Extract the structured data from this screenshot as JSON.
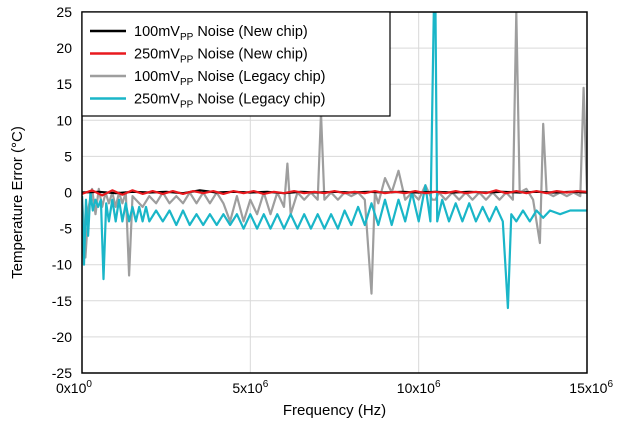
{
  "chart_data": {
    "type": "line",
    "xlabel": "Frequency (Hz)",
    "ylabel": "Temperature Error (°C)",
    "xlim": [
      0,
      15000000
    ],
    "ylim": [
      -25,
      25
    ],
    "grid": true,
    "legend_position": "top-left",
    "x_ticks": [
      {
        "value": 0,
        "mantissa": "0x10",
        "exp": "0"
      },
      {
        "value": 5000000,
        "mantissa": "5x10",
        "exp": "6"
      },
      {
        "value": 10000000,
        "mantissa": "10x10",
        "exp": "6"
      },
      {
        "value": 15000000,
        "mantissa": "15x10",
        "exp": "6"
      }
    ],
    "y_ticks": [
      "25",
      "20",
      "15",
      "10",
      "5",
      "0",
      "-5",
      "-10",
      "-15",
      "-20",
      "-25"
    ],
    "series": [
      {
        "name_base": "100mV",
        "name_sub": "PP",
        "name_rest": " Noise (New chip)",
        "color": "#000000",
        "points": [
          [
            0,
            0
          ],
          [
            500000,
            0.1
          ],
          [
            1000000,
            -0.1
          ],
          [
            1500000,
            0.1
          ],
          [
            2000000,
            0
          ],
          [
            2500000,
            0.1
          ],
          [
            3000000,
            -0.1
          ],
          [
            3500000,
            0.3
          ],
          [
            4000000,
            0
          ],
          [
            4500000,
            0.1
          ],
          [
            5000000,
            0
          ],
          [
            5500000,
            0.1
          ],
          [
            6000000,
            -0.1
          ],
          [
            6500000,
            0.1
          ],
          [
            7000000,
            0
          ],
          [
            7500000,
            0.1
          ],
          [
            8000000,
            0
          ],
          [
            8500000,
            0.1
          ],
          [
            9000000,
            0
          ],
          [
            9500000,
            0.1
          ],
          [
            10000000,
            0
          ],
          [
            10500000,
            0.1
          ],
          [
            11000000,
            0
          ],
          [
            11500000,
            0.1
          ],
          [
            12000000,
            0
          ],
          [
            12500000,
            0.1
          ],
          [
            13000000,
            0
          ],
          [
            13500000,
            0.1
          ],
          [
            14000000,
            0
          ],
          [
            14500000,
            0.1
          ],
          [
            15000000,
            0
          ]
        ]
      },
      {
        "name_base": "250mV",
        "name_sub": "PP",
        "name_rest": " Noise (New chip)",
        "color": "#e8191e",
        "points": [
          [
            0,
            -0.2
          ],
          [
            300000,
            0.3
          ],
          [
            600000,
            -0.4
          ],
          [
            900000,
            0.3
          ],
          [
            1200000,
            -0.3
          ],
          [
            1500000,
            0.3
          ],
          [
            1800000,
            -0.2
          ],
          [
            2100000,
            0.2
          ],
          [
            2400000,
            -0.2
          ],
          [
            2700000,
            0.2
          ],
          [
            3000000,
            -0.2
          ],
          [
            3300000,
            0.2
          ],
          [
            3600000,
            -0.1
          ],
          [
            3900000,
            0.2
          ],
          [
            4200000,
            -0.2
          ],
          [
            4500000,
            0.2
          ],
          [
            4800000,
            -0.1
          ],
          [
            5100000,
            0.2
          ],
          [
            5400000,
            -0.2
          ],
          [
            5700000,
            0.1
          ],
          [
            6000000,
            -0.1
          ],
          [
            6300000,
            0.2
          ],
          [
            6600000,
            -0.1
          ],
          [
            6900000,
            0.1
          ],
          [
            7200000,
            -0.1
          ],
          [
            7500000,
            0.2
          ],
          [
            7800000,
            -0.1
          ],
          [
            8100000,
            0.1
          ],
          [
            8400000,
            -0.1
          ],
          [
            8700000,
            0.2
          ],
          [
            9000000,
            -0.1
          ],
          [
            9300000,
            0.1
          ],
          [
            9600000,
            -0.1
          ],
          [
            9900000,
            0.2
          ],
          [
            10200000,
            -0.1
          ],
          [
            10500000,
            0.1
          ],
          [
            10800000,
            -0.1
          ],
          [
            11100000,
            0.2
          ],
          [
            11400000,
            -0.1
          ],
          [
            11700000,
            0.1
          ],
          [
            12000000,
            -0.1
          ],
          [
            12300000,
            0.3
          ],
          [
            12600000,
            -0.1
          ],
          [
            12900000,
            0.2
          ],
          [
            13200000,
            -0.1
          ],
          [
            13500000,
            0.2
          ],
          [
            13800000,
            -0.1
          ],
          [
            14100000,
            0.2
          ],
          [
            14400000,
            0
          ],
          [
            14700000,
            0.2
          ],
          [
            15000000,
            0.1
          ]
        ]
      },
      {
        "name_base": "100mV",
        "name_sub": "PP",
        "name_rest": " Noise (Legacy chip)",
        "color": "#9e9e9e",
        "points": [
          [
            0,
            -0.5
          ],
          [
            100000,
            -9
          ],
          [
            200000,
            -2
          ],
          [
            300000,
            0.5
          ],
          [
            400000,
            -3
          ],
          [
            500000,
            0.5
          ],
          [
            600000,
            -2
          ],
          [
            700000,
            0
          ],
          [
            800000,
            -1.5
          ],
          [
            900000,
            0
          ],
          [
            1000000,
            -2
          ],
          [
            1100000,
            0
          ],
          [
            1200000,
            -1.5
          ],
          [
            1300000,
            0
          ],
          [
            1400000,
            -11.5
          ],
          [
            1500000,
            -0.5
          ],
          [
            1600000,
            -1
          ],
          [
            1800000,
            -2
          ],
          [
            2000000,
            -0.5
          ],
          [
            2200000,
            -1.5
          ],
          [
            2400000,
            0
          ],
          [
            2600000,
            -1.5
          ],
          [
            2800000,
            -0.5
          ],
          [
            3000000,
            -1.5
          ],
          [
            3200000,
            0
          ],
          [
            3400000,
            -1.5
          ],
          [
            3600000,
            0
          ],
          [
            3800000,
            -1.5
          ],
          [
            4000000,
            0
          ],
          [
            4200000,
            -1.5
          ],
          [
            4400000,
            -4
          ],
          [
            4600000,
            -0.5
          ],
          [
            4800000,
            -4
          ],
          [
            5000000,
            -1
          ],
          [
            5200000,
            -3
          ],
          [
            5400000,
            0
          ],
          [
            5600000,
            -3
          ],
          [
            5800000,
            0
          ],
          [
            6000000,
            -2
          ],
          [
            6100000,
            4
          ],
          [
            6200000,
            -3
          ],
          [
            6400000,
            0
          ],
          [
            6600000,
            -1
          ],
          [
            6800000,
            0
          ],
          [
            7000000,
            -1
          ],
          [
            7100000,
            11
          ],
          [
            7200000,
            -1
          ],
          [
            7400000,
            0
          ],
          [
            7600000,
            -1
          ],
          [
            7800000,
            0
          ],
          [
            8000000,
            -0.5
          ],
          [
            8200000,
            0
          ],
          [
            8400000,
            -1
          ],
          [
            8600000,
            -14
          ],
          [
            8700000,
            0
          ],
          [
            8800000,
            -1.5
          ],
          [
            9000000,
            2
          ],
          [
            9200000,
            0
          ],
          [
            9400000,
            3
          ],
          [
            9600000,
            -1
          ],
          [
            9800000,
            0
          ],
          [
            10000000,
            -1
          ],
          [
            10200000,
            1
          ],
          [
            10400000,
            -1
          ],
          [
            10500000,
            -1
          ],
          [
            10600000,
            0
          ],
          [
            10800000,
            -1
          ],
          [
            11000000,
            0
          ],
          [
            11200000,
            -1
          ],
          [
            11400000,
            0
          ],
          [
            11600000,
            -1
          ],
          [
            11800000,
            0
          ],
          [
            12000000,
            -1
          ],
          [
            12200000,
            0
          ],
          [
            12400000,
            -1
          ],
          [
            12600000,
            0
          ],
          [
            12800000,
            -1
          ],
          [
            12900000,
            25
          ],
          [
            13000000,
            0
          ],
          [
            13200000,
            0.5
          ],
          [
            13400000,
            -1
          ],
          [
            13600000,
            -7
          ],
          [
            13700000,
            9.5
          ],
          [
            13800000,
            0
          ],
          [
            14000000,
            -0.5
          ],
          [
            14200000,
            0
          ],
          [
            14400000,
            -0.5
          ],
          [
            14600000,
            0
          ],
          [
            14800000,
            -0.5
          ],
          [
            14900000,
            14.5
          ],
          [
            15000000,
            0
          ]
        ]
      },
      {
        "name_base": "250mV",
        "name_sub": "PP",
        "name_rest": " Noise (Legacy chip)",
        "color": "#1ab6c8",
        "points": [
          [
            0,
            -0.5
          ],
          [
            60000,
            -10
          ],
          [
            120000,
            -1
          ],
          [
            180000,
            -6
          ],
          [
            250000,
            0
          ],
          [
            320000,
            -2.5
          ],
          [
            400000,
            -1
          ],
          [
            480000,
            -2
          ],
          [
            560000,
            -1
          ],
          [
            640000,
            -12
          ],
          [
            720000,
            -1.5
          ],
          [
            800000,
            -4
          ],
          [
            900000,
            -1
          ],
          [
            1000000,
            -4
          ],
          [
            1100000,
            -1
          ],
          [
            1200000,
            -4
          ],
          [
            1300000,
            -1.5
          ],
          [
            1400000,
            -4
          ],
          [
            1500000,
            -2
          ],
          [
            1600000,
            -4
          ],
          [
            1700000,
            -2
          ],
          [
            1800000,
            -4
          ],
          [
            1900000,
            -2
          ],
          [
            2000000,
            -4
          ],
          [
            2200000,
            -2.5
          ],
          [
            2400000,
            -4
          ],
          [
            2600000,
            -2.5
          ],
          [
            2800000,
            -4.5
          ],
          [
            3000000,
            -2.5
          ],
          [
            3200000,
            -4.5
          ],
          [
            3400000,
            -3
          ],
          [
            3600000,
            -4.5
          ],
          [
            3800000,
            -3
          ],
          [
            4000000,
            -4.5
          ],
          [
            4200000,
            -3
          ],
          [
            4400000,
            -4.5
          ],
          [
            4600000,
            -3
          ],
          [
            4800000,
            -5
          ],
          [
            5000000,
            -3
          ],
          [
            5200000,
            -5
          ],
          [
            5400000,
            -3
          ],
          [
            5600000,
            -5
          ],
          [
            5800000,
            -3
          ],
          [
            6000000,
            -5
          ],
          [
            6200000,
            -3
          ],
          [
            6400000,
            -5
          ],
          [
            6600000,
            -3
          ],
          [
            6800000,
            -5
          ],
          [
            7000000,
            -3
          ],
          [
            7200000,
            -5
          ],
          [
            7400000,
            -3
          ],
          [
            7600000,
            -5
          ],
          [
            7800000,
            -2.5
          ],
          [
            8000000,
            -4.5
          ],
          [
            8200000,
            -2
          ],
          [
            8400000,
            -4.5
          ],
          [
            8600000,
            -1.5
          ],
          [
            8800000,
            -4.5
          ],
          [
            9000000,
            -1
          ],
          [
            9200000,
            -4.5
          ],
          [
            9400000,
            -1
          ],
          [
            9600000,
            -4
          ],
          [
            9800000,
            0
          ],
          [
            10000000,
            -4
          ],
          [
            10200000,
            1
          ],
          [
            10350000,
            -4
          ],
          [
            10450000,
            25
          ],
          [
            10500000,
            25
          ],
          [
            10550000,
            -4
          ],
          [
            10700000,
            -1
          ],
          [
            10900000,
            -4
          ],
          [
            11100000,
            -1.5
          ],
          [
            11300000,
            -4
          ],
          [
            11500000,
            -1.5
          ],
          [
            11700000,
            -4
          ],
          [
            11900000,
            -2
          ],
          [
            12100000,
            -4
          ],
          [
            12300000,
            -2
          ],
          [
            12500000,
            -4
          ],
          [
            12650000,
            -16
          ],
          [
            12750000,
            -3
          ],
          [
            12900000,
            -4
          ],
          [
            13100000,
            -2.5
          ],
          [
            13300000,
            -4
          ],
          [
            13500000,
            -2.5
          ],
          [
            13700000,
            -3.5
          ],
          [
            13900000,
            -2.5
          ],
          [
            14200000,
            -3
          ],
          [
            14500000,
            -2.5
          ],
          [
            15000000,
            -2.5
          ]
        ]
      }
    ]
  }
}
